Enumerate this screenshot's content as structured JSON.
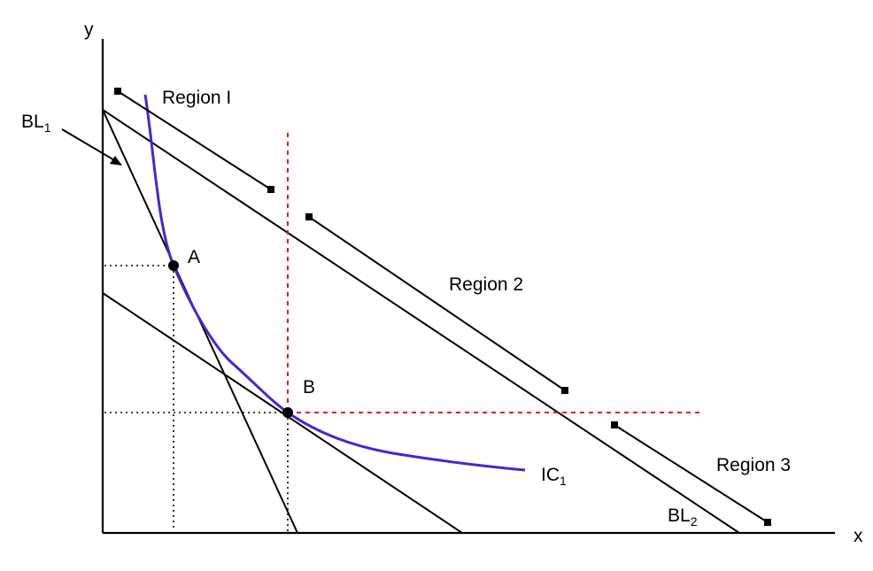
{
  "axes": {
    "x_label": "x",
    "y_label": "y"
  },
  "labels": {
    "region1": "Region I",
    "region2": "Region 2",
    "region3": "Region 3",
    "bl1": "BL",
    "bl1_sub": "1",
    "bl2": "BL",
    "bl2_sub": "2",
    "ic1": "IC",
    "ic1_sub": "1",
    "point_a": "A",
    "point_b": "B"
  },
  "colors": {
    "indifference_curve": "#4a23d6",
    "dashed_guides": "#e8141b",
    "lines": "#000000"
  }
}
